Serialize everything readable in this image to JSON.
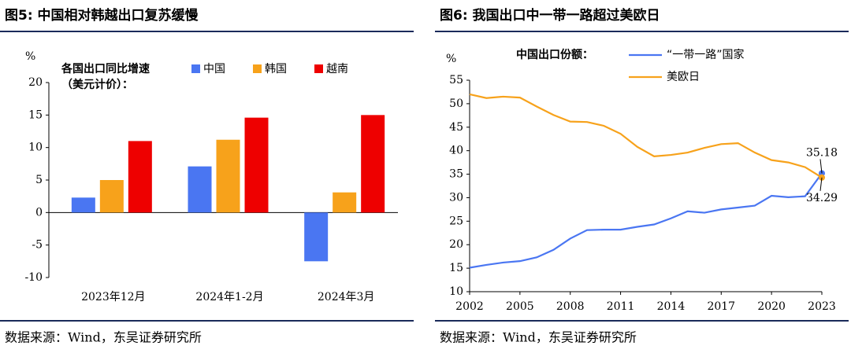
{
  "chart_data": [
    {
      "type": "bar",
      "title": "图5:  中国相对韩越出口复苏缓慢",
      "y_label": "%",
      "legend_title": [
        "各国出口同比增速",
        "（美元计价）："
      ],
      "categories": [
        "2023年12月",
        "2024年1-2月",
        "2024年3月"
      ],
      "series": [
        {
          "name": "中国",
          "color": "#4a76f2",
          "values": [
            2.3,
            7.1,
            -7.5
          ]
        },
        {
          "name": "韩国",
          "color": "#f7a21b",
          "values": [
            5.0,
            11.2,
            3.1
          ]
        },
        {
          "name": "越南",
          "color": "#ee0000",
          "values": [
            11.0,
            14.6,
            15.0
          ]
        }
      ],
      "ylim": [
        -10,
        20
      ],
      "yticks": [
        -10,
        -5,
        0,
        5,
        10,
        15,
        20
      ],
      "source": "数据来源：Wind，东吴证券研究所"
    },
    {
      "type": "line",
      "title": "图6:  我国出口中一带一路超过美欧日",
      "y_label": "%",
      "legend_title": [
        "中国出口份额："
      ],
      "x": [
        2002,
        2003,
        2004,
        2005,
        2006,
        2007,
        2008,
        2009,
        2010,
        2011,
        2012,
        2013,
        2014,
        2015,
        2016,
        2017,
        2018,
        2019,
        2020,
        2021,
        2022,
        2023
      ],
      "series": [
        {
          "name": "“一带一路”国家",
          "color": "#4a76f2",
          "values": [
            15.1,
            15.7,
            16.2,
            16.5,
            17.3,
            18.9,
            21.3,
            23.1,
            23.2,
            23.2,
            23.8,
            24.3,
            25.6,
            27.1,
            26.8,
            27.5,
            27.9,
            28.3,
            30.4,
            30.1,
            30.3,
            35.18
          ],
          "value_labels": [
            null,
            null,
            null,
            null,
            null,
            null,
            null,
            null,
            null,
            null,
            null,
            null,
            null,
            null,
            null,
            null,
            null,
            null,
            null,
            null,
            null,
            "35.18"
          ]
        },
        {
          "name": "美欧日",
          "color": "#f7a21b",
          "values": [
            52.0,
            51.2,
            51.5,
            51.3,
            49.4,
            47.6,
            46.2,
            46.1,
            45.3,
            43.6,
            40.8,
            38.8,
            39.1,
            39.6,
            40.6,
            41.4,
            41.6,
            39.6,
            38.0,
            37.5,
            36.5,
            34.29
          ],
          "value_labels": [
            null,
            null,
            null,
            null,
            null,
            null,
            null,
            null,
            null,
            null,
            null,
            null,
            null,
            null,
            null,
            null,
            null,
            null,
            null,
            null,
            null,
            "34.29"
          ]
        }
      ],
      "xlim": [
        2002,
        2023
      ],
      "xticks": [
        2002,
        2005,
        2008,
        2011,
        2014,
        2017,
        2020,
        2023
      ],
      "ylim": [
        10,
        55
      ],
      "yticks": [
        10,
        15,
        20,
        25,
        30,
        35,
        40,
        45,
        50,
        55
      ],
      "source": "数据来源：Wind，东吴证券研究所"
    }
  ]
}
